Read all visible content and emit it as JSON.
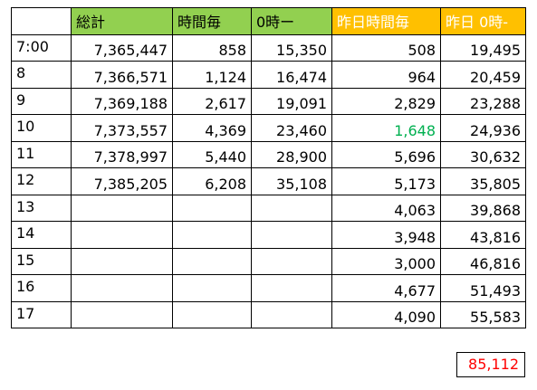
{
  "colors": {
    "header_green": "#92d050",
    "header_orange": "#ffc000",
    "highlight_green": "#00b050",
    "total_red": "#ff0000"
  },
  "headers": [
    "",
    "総計",
    "時間毎",
    "0時ー",
    "昨日時間毎",
    "昨日 0時-"
  ],
  "rows": [
    {
      "label": "7:00",
      "total": "7,365,447",
      "hourly": "858",
      "since_midnight": "15,350",
      "yesterday_hourly": "508",
      "yesterday_since_midnight": "19,495"
    },
    {
      "label": "8",
      "total": "7,366,571",
      "hourly": "1,124",
      "since_midnight": "16,474",
      "yesterday_hourly": "964",
      "yesterday_since_midnight": "20,459"
    },
    {
      "label": "9",
      "total": "7,369,188",
      "hourly": "2,617",
      "since_midnight": "19,091",
      "yesterday_hourly": "2,829",
      "yesterday_since_midnight": "23,288"
    },
    {
      "label": "10",
      "total": "7,373,557",
      "hourly": "4,369",
      "since_midnight": "23,460",
      "yesterday_hourly": "1,648",
      "yesterday_since_midnight": "24,936"
    },
    {
      "label": "11",
      "total": "7,378,997",
      "hourly": "5,440",
      "since_midnight": "28,900",
      "yesterday_hourly": "5,696",
      "yesterday_since_midnight": "30,632"
    },
    {
      "label": "12",
      "total": "7,385,205",
      "hourly": "6,208",
      "since_midnight": "35,108",
      "yesterday_hourly": "5,173",
      "yesterday_since_midnight": "35,805"
    },
    {
      "label": "13",
      "total": "",
      "hourly": "",
      "since_midnight": "",
      "yesterday_hourly": "4,063",
      "yesterday_since_midnight": "39,868"
    },
    {
      "label": "14",
      "total": "",
      "hourly": "",
      "since_midnight": "",
      "yesterday_hourly": "3,948",
      "yesterday_since_midnight": "43,816"
    },
    {
      "label": "15",
      "total": "",
      "hourly": "",
      "since_midnight": "",
      "yesterday_hourly": "3,000",
      "yesterday_since_midnight": "46,816"
    },
    {
      "label": "16",
      "total": "",
      "hourly": "",
      "since_midnight": "",
      "yesterday_hourly": "4,677",
      "yesterday_since_midnight": "51,493"
    },
    {
      "label": "17",
      "total": "",
      "hourly": "",
      "since_midnight": "",
      "yesterday_hourly": "4,090",
      "yesterday_since_midnight": "55,583"
    }
  ],
  "grand_total": "85,112"
}
